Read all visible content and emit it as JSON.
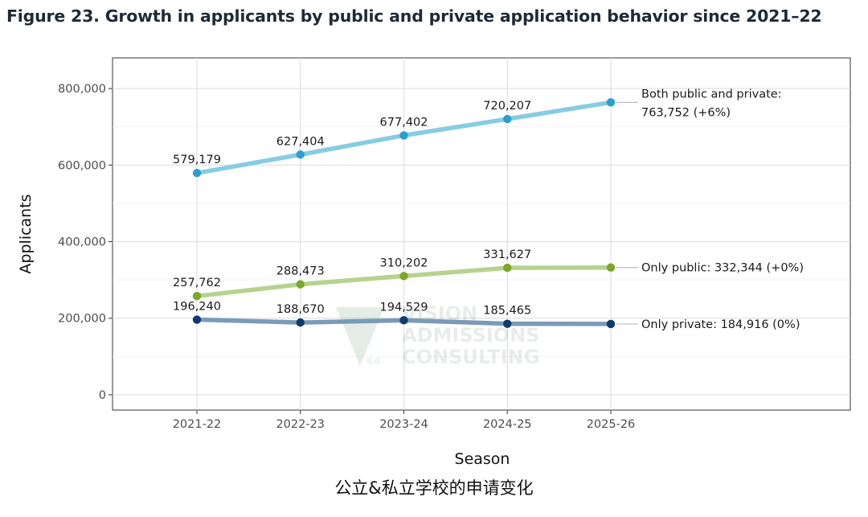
{
  "figure_title": "Figure 23. Growth in applicants by public and private application behavior since 2021–22",
  "caption": "公立&私立学校的申请变化",
  "watermark": {
    "line1": "VISION",
    "line2": "ADMISSIONS",
    "line3": "CONSULTING",
    "mark_text": "威诚"
  },
  "chart_data": {
    "type": "line",
    "title": "Figure 23. Growth in applicants by public and private application behavior since 2021–22",
    "xlabel": "Season",
    "ylabel": "Applicants",
    "categories": [
      "2021-22",
      "2022-23",
      "2023-24",
      "2024-25",
      "2025-26"
    ],
    "ylim": [
      -40000,
      880000
    ],
    "yticks": [
      0,
      200000,
      400000,
      600000,
      800000
    ],
    "ytick_labels": [
      "0",
      "200,000",
      "400,000",
      "600,000",
      "800,000"
    ],
    "grid": true,
    "series": [
      {
        "name": "Both public and private",
        "values": [
          579179,
          627404,
          677402,
          720207,
          763752
        ],
        "point_labels": [
          "579,179",
          "627,404",
          "677,402",
          "720,207"
        ],
        "end_label_line1": "Both public and private:",
        "end_label_line2": "763,752 (+6%)",
        "line_color": "#86cce3",
        "point_color": "#2a9fd0"
      },
      {
        "name": "Only public",
        "values": [
          257762,
          288473,
          310202,
          331627,
          332344
        ],
        "point_labels": [
          "257,762",
          "288,473",
          "310,202",
          "331,627"
        ],
        "end_label_line1": "Only public: 332,344 (+0%)",
        "line_color": "#b7d28e",
        "point_color": "#7aa82a"
      },
      {
        "name": "Only private",
        "values": [
          196240,
          188670,
          194529,
          185465,
          184916
        ],
        "point_labels": [
          "196,240",
          "188,670",
          "194,529",
          "185,465"
        ],
        "end_label_line1": "Only private: 184,916 (0%)",
        "line_color": "#7b9ab8",
        "point_color": "#0f3b6e"
      }
    ]
  }
}
